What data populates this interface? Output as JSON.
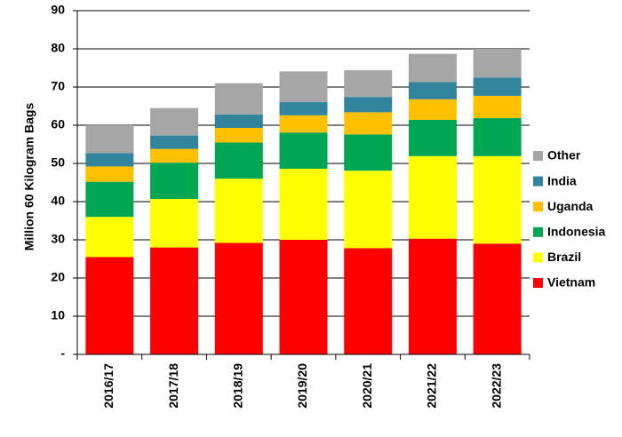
{
  "chart_data": {
    "type": "bar",
    "stacked": true,
    "categories": [
      "2016/17",
      "2017/18",
      "2018/19",
      "2019/20",
      "2020/21",
      "2021/22",
      "2022/23"
    ],
    "series": [
      {
        "name": "Vietnam",
        "color": "#ff0000",
        "values": [
          25.5,
          28.0,
          29.2,
          30.0,
          27.8,
          30.3,
          29.0
        ]
      },
      {
        "name": "Brazil",
        "color": "#ffff00",
        "values": [
          10.5,
          12.7,
          16.8,
          18.6,
          20.3,
          21.6,
          22.9
        ]
      },
      {
        "name": "Indonesia",
        "color": "#00a651",
        "values": [
          9.2,
          9.5,
          9.5,
          9.5,
          9.5,
          9.5,
          10.0
        ]
      },
      {
        "name": "Uganda",
        "color": "#ffc000",
        "values": [
          4.0,
          3.6,
          3.8,
          4.5,
          5.8,
          5.4,
          5.8
        ]
      },
      {
        "name": "India",
        "color": "#31849b",
        "values": [
          3.5,
          3.5,
          3.5,
          3.5,
          4.0,
          4.5,
          4.8
        ]
      },
      {
        "name": "Other",
        "color": "#a6a6a6",
        "values": [
          7.3,
          7.2,
          8.2,
          8.0,
          7.0,
          7.4,
          7.5
        ]
      }
    ],
    "ylabel": "Million 60 Kilogram Bags",
    "ylim": [
      0,
      90
    ],
    "yticks": [
      0,
      10,
      20,
      30,
      40,
      50,
      60,
      70,
      80,
      90
    ],
    "ytick_labels": [
      "-",
      "10",
      "20",
      "30",
      "40",
      "50",
      "60",
      "70",
      "80",
      "90"
    ],
    "grid": true,
    "legend_position": "right",
    "legend_order": [
      "Other",
      "India",
      "Uganda",
      "Indonesia",
      "Brazil",
      "Vietnam"
    ]
  }
}
